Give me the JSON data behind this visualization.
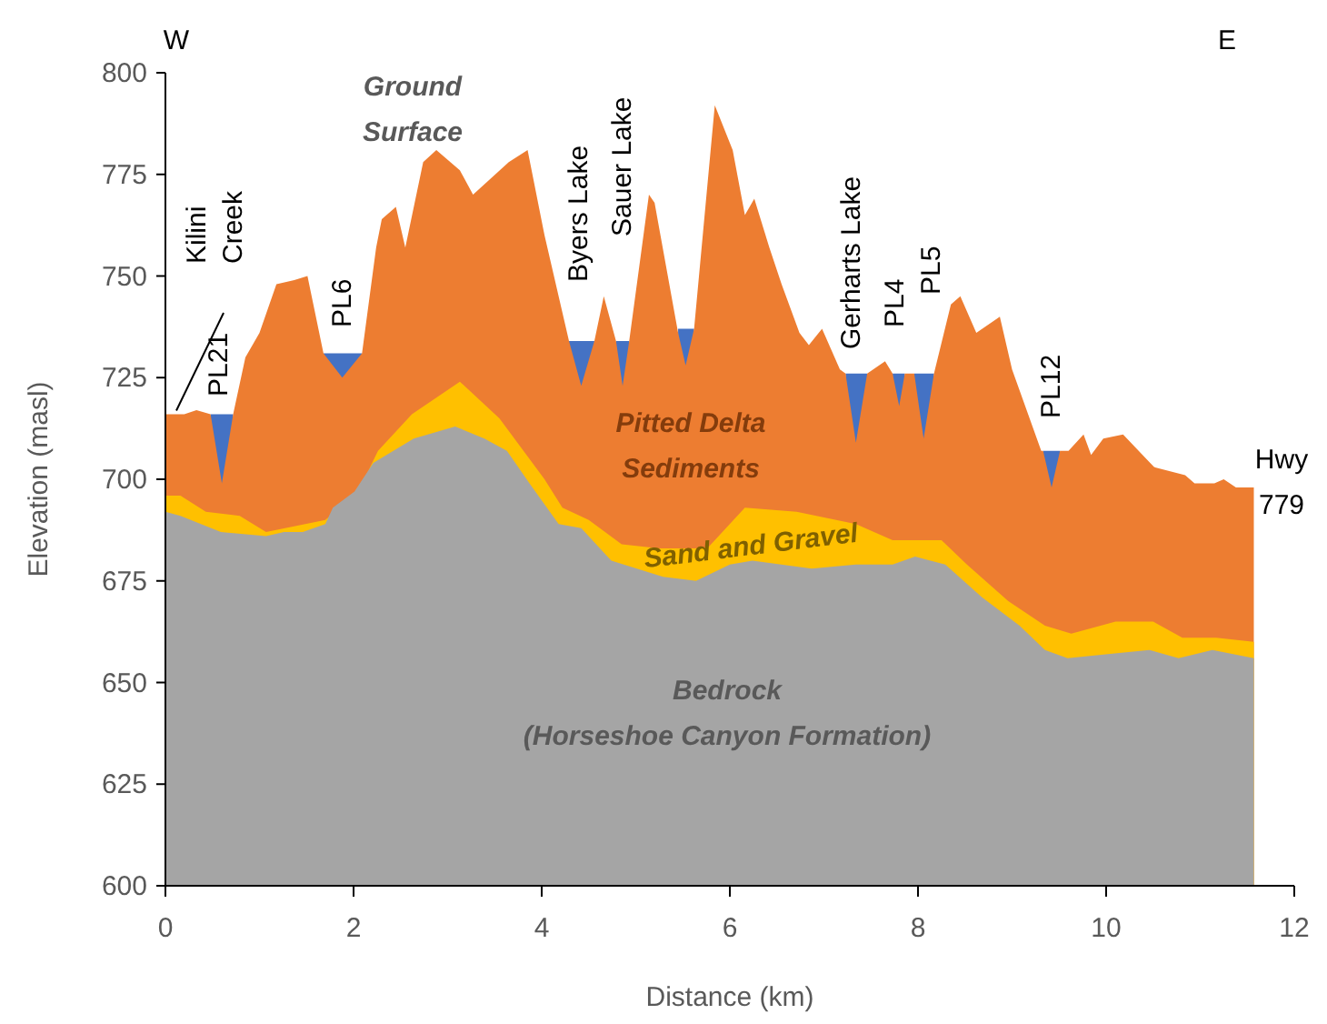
{
  "chart_data": {
    "type": "area",
    "xlabel": "Distance (km)",
    "ylabel": "Elevation (masl)",
    "xlim": [
      0,
      12
    ],
    "xticks": [
      0,
      2,
      4,
      6,
      8,
      10,
      12
    ],
    "ylim": [
      600,
      800
    ],
    "yticks": [
      600,
      625,
      650,
      675,
      700,
      725,
      750,
      775,
      800
    ],
    "grid": false,
    "series": [
      {
        "color": "#4472c4",
        "x": [
          0.48,
          0.72,
          0.73,
          1.68,
          2.09,
          2.1,
          4.29,
          4.56,
          4.57,
          4.79,
          4.93,
          4.94,
          5.45,
          5.62,
          5.63,
          7.23,
          7.46,
          7.47,
          7.73,
          7.86,
          7.87,
          7.96,
          8.17,
          8.18,
          9.33,
          9.51
        ],
        "values": [
          716,
          716,
          null,
          731,
          731,
          null,
          734,
          734,
          null,
          734,
          734,
          null,
          737,
          737,
          null,
          726,
          726,
          null,
          726,
          726,
          null,
          726,
          726,
          null,
          707,
          707
        ]
      },
      {
        "color": "#ed7d31",
        "x": [
          0,
          0.2,
          0.33,
          0.48,
          0.6,
          0.72,
          0.85,
          1.0,
          1.18,
          1.37,
          1.51,
          1.68,
          1.88,
          2.09,
          2.24,
          2.3,
          2.45,
          2.55,
          2.74,
          2.88,
          3.13,
          3.27,
          3.65,
          3.85,
          4.03,
          4.29,
          4.42,
          4.56,
          4.66,
          4.79,
          4.86,
          4.93,
          5.14,
          5.2,
          5.45,
          5.53,
          5.62,
          5.84,
          6.03,
          6.16,
          6.26,
          6.42,
          6.55,
          6.74,
          6.84,
          6.98,
          7.17,
          7.23,
          7.34,
          7.46,
          7.65,
          7.73,
          7.8,
          7.86,
          7.96,
          8.06,
          8.17,
          8.35,
          8.45,
          8.62,
          8.87,
          9.0,
          9.31,
          9.33,
          9.42,
          9.51,
          9.6,
          9.76,
          9.84,
          9.97,
          10.18,
          10.51,
          10.84,
          10.94,
          11.15,
          11.25,
          11.38,
          11.57
        ],
        "values": [
          716,
          716,
          717,
          716,
          699,
          716,
          730,
          736,
          748,
          749,
          750,
          731,
          725,
          731,
          757,
          764,
          767,
          757,
          778,
          781,
          776,
          770,
          778,
          781,
          760,
          734,
          723,
          734,
          745,
          734,
          723,
          734,
          770,
          768,
          736,
          728,
          737,
          792,
          781,
          765,
          769,
          757,
          748,
          736,
          733,
          737,
          727,
          726,
          709,
          726,
          729,
          726,
          718,
          726,
          726,
          710,
          726,
          743,
          745,
          736,
          740,
          727,
          707,
          707,
          698,
          707,
          707,
          711,
          706,
          710,
          711,
          703,
          701,
          699,
          699,
          700,
          698,
          698
        ]
      },
      {
        "color": "#ffc000",
        "x": [
          0,
          0.16,
          0.43,
          0.79,
          1.07,
          1.7,
          2.05,
          2.26,
          2.62,
          3.13,
          3.55,
          4.03,
          4.22,
          4.5,
          4.85,
          5.25,
          5.76,
          6.16,
          6.71,
          7.34,
          7.73,
          8.25,
          8.52,
          8.96,
          9.35,
          9.63,
          10.1,
          10.5,
          10.81,
          11.17,
          11.57
        ],
        "values": [
          696,
          696,
          692,
          691,
          687,
          690,
          697,
          707,
          716,
          724,
          715,
          700,
          693,
          690,
          684,
          683,
          683,
          693,
          692,
          689,
          685,
          685,
          679,
          670,
          664,
          662,
          665,
          665,
          661,
          661,
          660
        ]
      },
      {
        "color": "#a5a5a5",
        "x": [
          0,
          0.16,
          0.59,
          1.07,
          1.26,
          1.46,
          1.7,
          1.78,
          2.01,
          2.21,
          2.64,
          3.08,
          3.39,
          3.63,
          3.87,
          4.18,
          4.42,
          4.74,
          5.29,
          5.64,
          6.0,
          6.24,
          6.87,
          7.34,
          7.73,
          7.97,
          8.29,
          8.68,
          9.08,
          9.35,
          9.59,
          10.02,
          10.46,
          10.77,
          11.13,
          11.57
        ],
        "values": [
          692,
          691,
          687,
          686,
          687,
          687,
          689,
          693,
          697,
          704,
          710,
          713,
          710,
          707,
          699,
          689,
          688,
          680,
          676,
          675,
          679,
          680,
          678,
          679,
          679,
          681,
          679,
          671,
          664,
          658,
          656,
          657,
          658,
          656,
          658,
          656
        ]
      }
    ],
    "annotations": [
      "Ground\nSurface",
      "Pitted Delta\nSediments",
      "Sand and Gravel",
      "Bedrock\n(Horseshoe Canyon Formation)",
      "W",
      "E",
      "Hwy\n779",
      "Kilini\nCreek",
      "PL21",
      "PL6",
      "Byers Lake",
      "Sauer Lake",
      "Gerharts Lake",
      "PL4",
      "PL5",
      "PL12"
    ]
  }
}
